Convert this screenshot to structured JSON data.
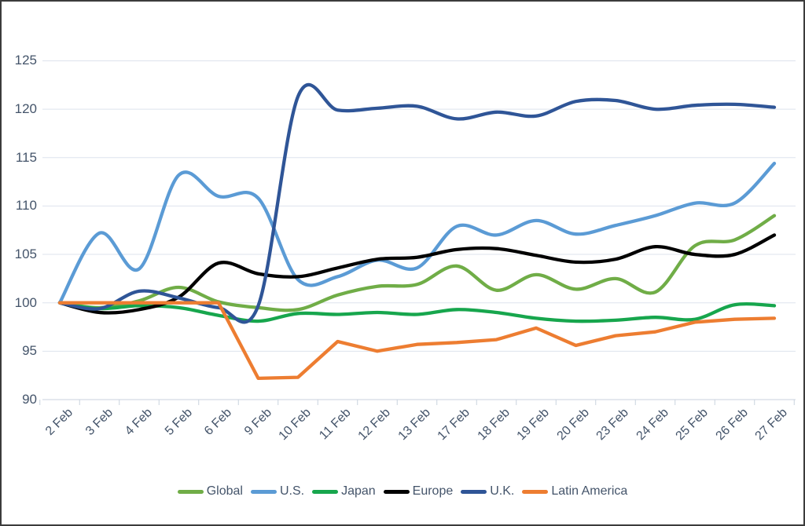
{
  "chart_data": {
    "type": "line",
    "title": "",
    "xlabel": "",
    "ylabel": "",
    "categories": [
      "2 Feb",
      "3 Feb",
      "4 Feb",
      "5 Feb",
      "6 Feb",
      "9 Feb",
      "10 Feb",
      "11 Feb",
      "12 Feb",
      "13 Feb",
      "17 Feb",
      "18 Feb",
      "19 Feb",
      "20 Feb",
      "23 Feb",
      "24 Feb",
      "25 Feb",
      "26 Feb",
      "27 Feb"
    ],
    "series": [
      {
        "name": "Global",
        "color": "#70AD47",
        "smooth": true,
        "values": [
          100,
          99.5,
          100.2,
          101.6,
          100.1,
          99.5,
          99.3,
          100.8,
          101.7,
          101.9,
          103.8,
          101.3,
          102.9,
          101.4,
          102.5,
          101.1,
          105.9,
          106.5,
          109.0
        ]
      },
      {
        "name": "U.S.",
        "color": "#5B9BD5",
        "smooth": true,
        "values": [
          100,
          107.2,
          103.5,
          113.2,
          111.0,
          110.8,
          102.4,
          102.7,
          104.4,
          103.6,
          107.9,
          107.0,
          108.5,
          107.1,
          108.0,
          109.0,
          110.3,
          110.3,
          114.4
        ]
      },
      {
        "name": "Japan",
        "color": "#17A64D",
        "smooth": true,
        "values": [
          100,
          99.4,
          99.7,
          99.5,
          98.7,
          98.1,
          98.9,
          98.8,
          99.0,
          98.8,
          99.3,
          99.0,
          98.4,
          98.1,
          98.2,
          98.5,
          98.3,
          99.8,
          99.7
        ]
      },
      {
        "name": "Europe",
        "color": "#000000",
        "smooth": true,
        "values": [
          100,
          99.0,
          99.3,
          100.6,
          104.1,
          103.0,
          102.7,
          103.6,
          104.5,
          104.7,
          105.5,
          105.6,
          104.9,
          104.2,
          104.5,
          105.8,
          105.0,
          105.0,
          107.0
        ]
      },
      {
        "name": "U.K.",
        "color": "#2F5597",
        "smooth": true,
        "values": [
          100,
          99.4,
          101.2,
          100.5,
          99.5,
          99.7,
          121.3,
          119.9,
          120.1,
          120.3,
          119.0,
          119.7,
          119.3,
          120.8,
          120.9,
          120.0,
          120.4,
          120.5,
          120.2
        ]
      },
      {
        "name": "Latin America",
        "color": "#ED7D31",
        "smooth": false,
        "values": [
          100,
          100,
          100,
          100,
          100,
          92.2,
          92.3,
          96.0,
          95.0,
          95.7,
          95.9,
          96.2,
          97.4,
          95.6,
          96.6,
          97.0,
          98.0,
          98.3,
          98.4
        ]
      }
    ],
    "y_axis": {
      "min": 90,
      "max": 125,
      "step": 5,
      "tick_labels": [
        "90",
        "95",
        "100",
        "105",
        "110",
        "115",
        "120",
        "125"
      ]
    },
    "grid": "horizontal",
    "legend_position": "bottom",
    "style": {
      "gridline_color": "#DDE3ED",
      "axis_tick_color": "#C9D2DE",
      "axis_label_color": "#44546A",
      "background": "#FFFFFF",
      "frame_border_color": "#3C3C3C"
    }
  }
}
